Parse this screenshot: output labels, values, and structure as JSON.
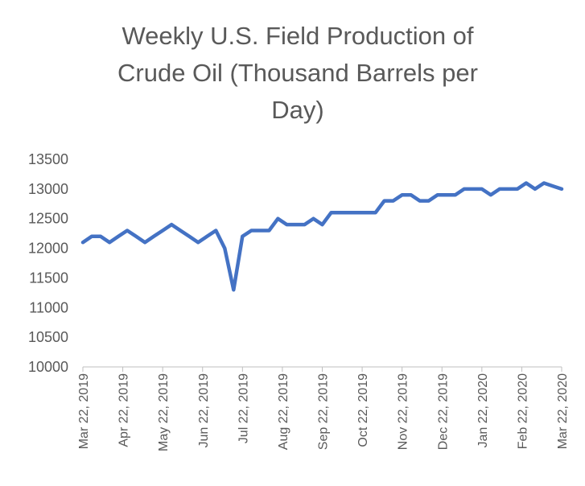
{
  "chart_data": {
    "type": "line",
    "title_lines": [
      "Weekly U.S. Field Production of",
      "Crude Oil  (Thousand Barrels per",
      "Day)"
    ],
    "xlabel": "",
    "ylabel": "",
    "ylim": [
      10000,
      13500
    ],
    "y_ticks": [
      10000,
      10500,
      11000,
      11500,
      12000,
      12500,
      13000,
      13500
    ],
    "x_tick_labels": [
      "Mar 22, 2019",
      "Apr 22, 2019",
      "May 22, 2019",
      "Jun 22, 2019",
      "Jul 22, 2019",
      "Aug 22, 2019",
      "Sep 22, 2019",
      "Oct 22, 2019",
      "Nov 22, 2019",
      "Dec 22, 2019",
      "Jan 22, 2020",
      "Feb 22, 2020",
      "Mar 22, 2020"
    ],
    "grid": false,
    "legend": "none",
    "line_color": "#4472C4",
    "series": [
      {
        "values": [
          12100,
          12200,
          12200,
          12100,
          12200,
          12300,
          12200,
          12100,
          12200,
          12300,
          12400,
          12300,
          12200,
          12100,
          12200,
          12300,
          12000,
          11300,
          12200,
          12300,
          12300,
          12300,
          12500,
          12400,
          12400,
          12400,
          12500,
          12400,
          12600,
          12600,
          12600,
          12600,
          12600,
          12600,
          12800,
          12800,
          12900,
          12900,
          12800,
          12800,
          12900,
          12900,
          12900,
          13000,
          13000,
          13000,
          12900,
          13000,
          13000,
          13000,
          13100,
          13000,
          13100,
          13050,
          13000
        ]
      }
    ]
  }
}
